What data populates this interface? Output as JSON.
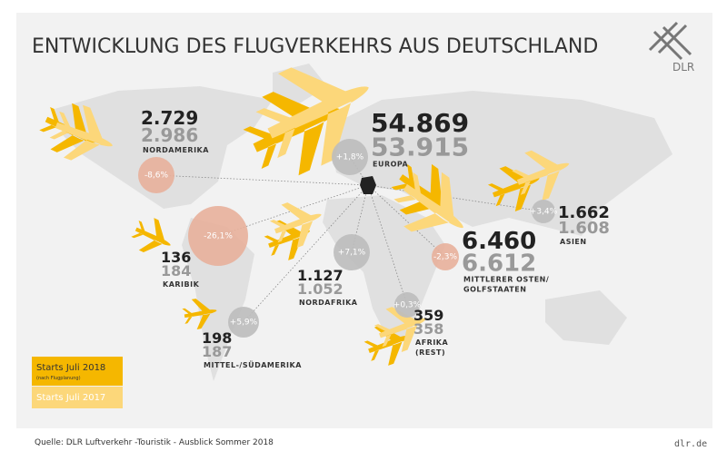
{
  "header": {
    "title": "ENTWICKLUNG DES FLUGVERKEHRS AUS DEUTSCHLAND",
    "logo": "DLR"
  },
  "regions": [
    {
      "name": [
        "NORDAMERIKA"
      ],
      "starts_2018": "2.729",
      "starts_2017": "2.986",
      "change": "-8,6%"
    },
    {
      "name": [
        "EUROPA"
      ],
      "starts_2018": "54.869",
      "starts_2017": "53.915",
      "change": "+1,8%"
    },
    {
      "name": [
        "KARIBIK"
      ],
      "starts_2018": "136",
      "starts_2017": "184",
      "change": "-26,1%"
    },
    {
      "name": [
        "NORDAFRIKA"
      ],
      "starts_2018": "1.127",
      "starts_2017": "1.052",
      "change": "+7,1%"
    },
    {
      "name": [
        "MITTEL-/SÜDAMERIKA"
      ],
      "starts_2018": "198",
      "starts_2017": "187",
      "change": "+5,9%"
    },
    {
      "name": [
        "AFRIKA",
        "(REST)"
      ],
      "starts_2018": "359",
      "starts_2017": "358",
      "change": "+0,3%"
    },
    {
      "name": [
        "MITTLERER OSTEN/",
        "GOLFSTAATEN"
      ],
      "starts_2018": "6.460",
      "starts_2017": "6.612",
      "change": "-2,3%"
    },
    {
      "name": [
        "ASIEN"
      ],
      "starts_2018": "1.662",
      "starts_2017": "1.608",
      "change": "+3,4%"
    }
  ],
  "legend": {
    "items": [
      {
        "label": "Starts Juli 2018",
        "note": "(nach Flugplanung)"
      },
      {
        "label": "Starts Juli 2017"
      }
    ]
  },
  "footer": {
    "source": "Quelle: DLR Luftverkehr -Touristik - Ausblick Sommer 2018",
    "url": "dlr.de"
  }
}
